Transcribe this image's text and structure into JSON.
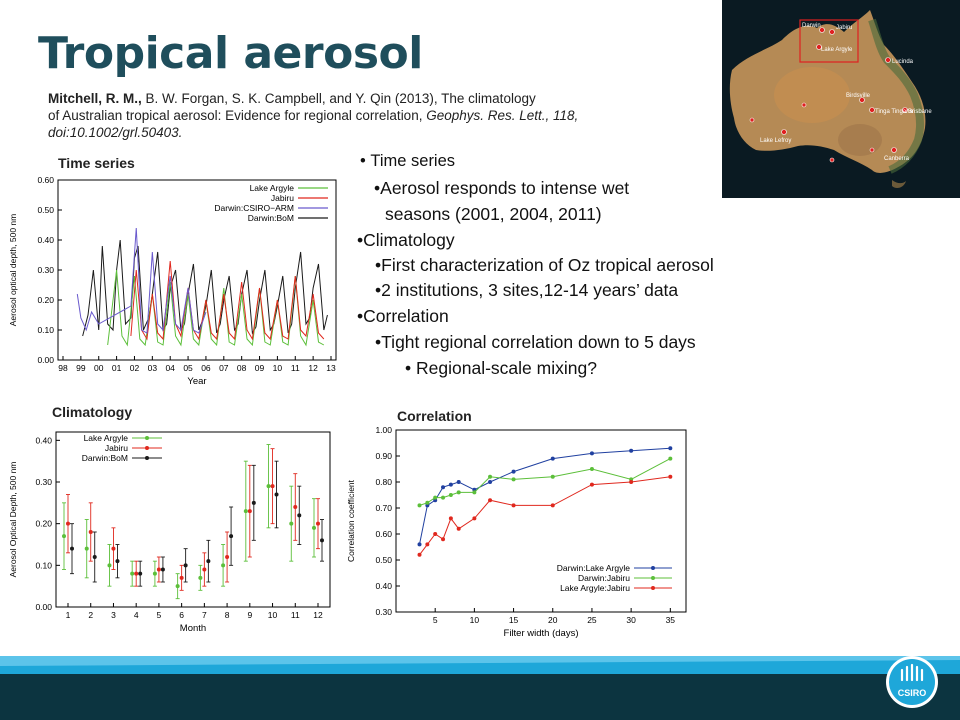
{
  "slide": {
    "title": "Tropical aerosol",
    "citation": {
      "authors_bold": "Mitchell, R. M.,",
      "authors_rest": " B. W. Forgan, S. K. Campbell, and Y. Qin (2013), The climatology",
      "line2_plain": "of Australian tropical aerosol: Evidence for regional correlation, ",
      "journal": "Geophys. Res. Lett., 118,",
      "doi": "doi:10.1002/grl.50403."
    },
    "bullets": {
      "b1": "Time series",
      "b1a": "Aerosol responds to intense wet",
      "b1b": "seasons (2001, 2004, 2011)",
      "b2": "Climatology",
      "b2a": "First characterization of Oz tropical aerosol",
      "b2b": "2 institutions, 3 sites,12-14 years’ data",
      "b3": "Correlation",
      "b3a": "Tight regional correlation down to 5 days",
      "b3b": " Regional-scale mixing?"
    },
    "panel_labels": {
      "timeseries": "Time series",
      "climatology": "Climatology",
      "correlation": "Correlation"
    },
    "map": {
      "places": [
        "Darwin",
        "Jabiru",
        "Lake Argyle",
        "Lucinda",
        "Birdsville",
        "Tinga Tingana",
        "Brisbane",
        "Lake Lefroy",
        "Canberra"
      ]
    },
    "logo": "CSIRO",
    "colors": {
      "title": "#1f4e5c",
      "footer_light": "#1ea7d9",
      "footer_dark": "#0c3440",
      "green": "#5cbf3a",
      "red": "#e0281e",
      "blue": "#2040a0",
      "purple": "#6a5acd"
    }
  },
  "chart_data": [
    {
      "type": "line",
      "name_shown": "Time series",
      "xlabel": "Year",
      "ylabel": "Aerosol optical depth, 500 nm",
      "xticks": [
        "98",
        "99",
        "00",
        "01",
        "02",
        "03",
        "04",
        "05",
        "06",
        "07",
        "08",
        "09",
        "10",
        "11",
        "12",
        "13"
      ],
      "yticks": [
        "0.00",
        "0.10",
        "0.20",
        "0.30",
        "0.40",
        "0.50",
        "0.60"
      ],
      "ylim": [
        0,
        0.6
      ],
      "xlim": [
        1998,
        2013
      ],
      "legend": [
        "Lake Argyle",
        "Jabiru",
        "Darwin:CSIRO−ARM",
        "Darwin:BoM"
      ],
      "legend_position": "top-right",
      "series_colors": [
        "#5cbf3a",
        "#e0281e",
        "#6a5acd",
        "#1a1a1a"
      ],
      "series": [
        {
          "name": "Darwin:BoM",
          "x": [
            1999.1,
            1999.4,
            1999.7,
            2000.0,
            2000.2,
            2000.5,
            2000.8,
            2001.0,
            2001.2,
            2001.5,
            2001.8,
            2002.0,
            2002.2,
            2002.5,
            2002.8,
            2003.0,
            2003.3,
            2003.6,
            2003.8,
            2004.0,
            2004.3,
            2004.6,
            2004.8,
            2005.0,
            2005.3,
            2005.6,
            2005.8,
            2006.0,
            2006.3,
            2006.6,
            2006.8,
            2007.0,
            2007.3,
            2007.6,
            2007.8,
            2008.0,
            2008.3,
            2008.6,
            2008.8,
            2009.0,
            2009.3,
            2009.6,
            2009.8,
            2010.0,
            2010.3,
            2010.6,
            2010.8,
            2011.0,
            2011.3,
            2011.6,
            2011.8,
            2012.0,
            2012.3,
            2012.6,
            2012.8
          ],
          "y": [
            0.08,
            0.15,
            0.3,
            0.1,
            0.38,
            0.12,
            0.1,
            0.3,
            0.4,
            0.12,
            0.14,
            0.34,
            0.38,
            0.1,
            0.14,
            0.22,
            0.36,
            0.1,
            0.12,
            0.24,
            0.3,
            0.1,
            0.12,
            0.22,
            0.32,
            0.1,
            0.13,
            0.18,
            0.3,
            0.09,
            0.12,
            0.2,
            0.28,
            0.1,
            0.12,
            0.22,
            0.3,
            0.09,
            0.11,
            0.2,
            0.3,
            0.1,
            0.12,
            0.18,
            0.28,
            0.09,
            0.12,
            0.24,
            0.36,
            0.12,
            0.14,
            0.24,
            0.32,
            0.1,
            0.15
          ]
        },
        {
          "name": "Lake Argyle",
          "x": [
            2000.5,
            2001.0,
            2001.3,
            2001.6,
            2002.0,
            2002.3,
            2002.6,
            2003.0,
            2003.3,
            2003.6,
            2004.0,
            2004.3,
            2004.6,
            2005.0,
            2005.3,
            2005.6,
            2006.0,
            2006.3,
            2006.6,
            2007.0,
            2007.3,
            2007.6,
            2008.0,
            2008.3,
            2008.6,
            2009.0,
            2009.3,
            2009.6,
            2010.0,
            2010.3,
            2010.6,
            2011.0,
            2011.3,
            2011.6,
            2012.0,
            2012.3,
            2012.6
          ],
          "y": [
            0.05,
            0.3,
            0.08,
            0.05,
            0.28,
            0.07,
            0.05,
            0.22,
            0.06,
            0.05,
            0.26,
            0.08,
            0.05,
            0.22,
            0.07,
            0.05,
            0.2,
            0.07,
            0.05,
            0.24,
            0.06,
            0.05,
            0.22,
            0.07,
            0.05,
            0.24,
            0.06,
            0.05,
            0.2,
            0.06,
            0.05,
            0.28,
            0.08,
            0.05,
            0.2,
            0.06,
            0.05
          ]
        },
        {
          "name": "Jabiru",
          "x": [
            2001.8,
            2002.1,
            2002.4,
            2002.7,
            2003.0,
            2003.3,
            2003.6,
            2004.0,
            2004.3,
            2004.6,
            2005.0,
            2005.3,
            2005.6,
            2006.0,
            2006.3,
            2006.6,
            2007.0,
            2007.3,
            2007.6,
            2008.0,
            2008.3,
            2008.6,
            2009.0,
            2009.3,
            2009.6,
            2010.0,
            2010.3,
            2010.6,
            2011.0,
            2011.3,
            2011.6,
            2012.0,
            2012.3,
            2012.6
          ],
          "y": [
            0.08,
            0.3,
            0.1,
            0.07,
            0.22,
            0.09,
            0.07,
            0.33,
            0.12,
            0.08,
            0.24,
            0.1,
            0.07,
            0.2,
            0.09,
            0.07,
            0.22,
            0.09,
            0.07,
            0.26,
            0.1,
            0.07,
            0.24,
            0.09,
            0.07,
            0.2,
            0.08,
            0.07,
            0.28,
            0.1,
            0.08,
            0.22,
            0.09,
            0.07
          ]
        },
        {
          "name": "Darwin:CSIRO−ARM",
          "x": [
            1998.8,
            1999.0,
            1999.3,
            1999.6,
            2000.0,
            2001.8,
            2002.1,
            2002.4,
            2002.7,
            2003.0,
            2003.3,
            2003.6,
            2004.0,
            2004.3,
            2004.6,
            2005.0,
            2005.3,
            2005.6,
            2006.0
          ],
          "y": [
            0.22,
            0.14,
            0.1,
            0.16,
            0.12,
            0.18,
            0.44,
            0.1,
            0.09,
            0.36,
            0.12,
            0.1,
            0.28,
            0.12,
            0.1,
            0.24,
            0.1,
            0.09,
            0.16
          ]
        }
      ]
    },
    {
      "type": "scatter",
      "name_shown": "Climatology",
      "xlabel": "Month",
      "ylabel": "Aerosol Optical Depth, 500 nm",
      "xticks": [
        "1",
        "2",
        "3",
        "4",
        "5",
        "6",
        "7",
        "8",
        "9",
        "10",
        "11",
        "12"
      ],
      "yticks": [
        "0.00",
        "0.10",
        "0.20",
        "0.30",
        "0.40"
      ],
      "ylim": [
        0,
        0.42
      ],
      "legend": [
        "Lake Argyle",
        "Jabiru",
        "Darwin:BoM"
      ],
      "legend_position": "top-left",
      "series_colors": [
        "#5cbf3a",
        "#e0281e",
        "#1a1a1a"
      ],
      "series": [
        {
          "name": "Lake Argyle",
          "x": [
            1,
            2,
            3,
            4,
            5,
            6,
            7,
            8,
            9,
            10,
            11,
            12
          ],
          "y": [
            0.17,
            0.14,
            0.1,
            0.08,
            0.08,
            0.05,
            0.07,
            0.1,
            0.23,
            0.29,
            0.2,
            0.19
          ],
          "err": [
            0.08,
            0.07,
            0.05,
            0.03,
            0.03,
            0.03,
            0.03,
            0.05,
            0.12,
            0.1,
            0.09,
            0.07
          ]
        },
        {
          "name": "Jabiru",
          "x": [
            1,
            2,
            3,
            4,
            5,
            6,
            7,
            8,
            9,
            10,
            11,
            12
          ],
          "y": [
            0.2,
            0.18,
            0.14,
            0.08,
            0.09,
            0.07,
            0.09,
            0.12,
            0.23,
            0.29,
            0.24,
            0.2
          ],
          "err": [
            0.07,
            0.07,
            0.05,
            0.03,
            0.03,
            0.03,
            0.04,
            0.06,
            0.11,
            0.09,
            0.08,
            0.06
          ]
        },
        {
          "name": "Darwin:BoM",
          "x": [
            1,
            2,
            3,
            4,
            5,
            6,
            7,
            8,
            9,
            10,
            11,
            12
          ],
          "y": [
            0.14,
            0.12,
            0.11,
            0.08,
            0.09,
            0.1,
            0.11,
            0.17,
            0.25,
            0.27,
            0.22,
            0.16
          ],
          "err": [
            0.06,
            0.06,
            0.04,
            0.03,
            0.03,
            0.04,
            0.05,
            0.07,
            0.09,
            0.08,
            0.07,
            0.05
          ]
        }
      ]
    },
    {
      "type": "line",
      "name_shown": "Correlation",
      "xlabel": "Filter width (days)",
      "ylabel": "Correlation coefficient",
      "xticks": [
        "5",
        "10",
        "15",
        "20",
        "25",
        "30",
        "35"
      ],
      "yticks": [
        "0.30",
        "0.40",
        "0.50",
        "0.60",
        "0.70",
        "0.80",
        "0.90",
        "1.00"
      ],
      "ylim": [
        0.3,
        1.0
      ],
      "xlim": [
        0,
        37
      ],
      "legend": [
        "Darwin:Lake Argyle",
        "Darwin:Jabiru",
        "Lake Argyle:Jabiru"
      ],
      "legend_position": "bottom-right",
      "series_colors": [
        "#2040a0",
        "#5cbf3a",
        "#e0281e"
      ],
      "series": [
        {
          "name": "Darwin:Lake Argyle",
          "x": [
            3,
            4,
            5,
            6,
            7,
            8,
            10,
            12,
            15,
            20,
            25,
            30,
            35
          ],
          "y": [
            0.56,
            0.71,
            0.73,
            0.78,
            0.79,
            0.8,
            0.77,
            0.8,
            0.84,
            0.89,
            0.91,
            0.92,
            0.93
          ]
        },
        {
          "name": "Darwin:Jabiru",
          "x": [
            3,
            4,
            5,
            6,
            7,
            8,
            10,
            12,
            15,
            20,
            25,
            30,
            35
          ],
          "y": [
            0.71,
            0.72,
            0.74,
            0.74,
            0.75,
            0.76,
            0.76,
            0.82,
            0.81,
            0.82,
            0.85,
            0.81,
            0.89
          ]
        },
        {
          "name": "Lake Argyle:Jabiru",
          "x": [
            3,
            4,
            5,
            6,
            7,
            8,
            10,
            12,
            15,
            20,
            25,
            30,
            35
          ],
          "y": [
            0.52,
            0.56,
            0.6,
            0.58,
            0.66,
            0.62,
            0.66,
            0.73,
            0.71,
            0.71,
            0.79,
            0.8,
            0.82
          ]
        }
      ]
    }
  ]
}
